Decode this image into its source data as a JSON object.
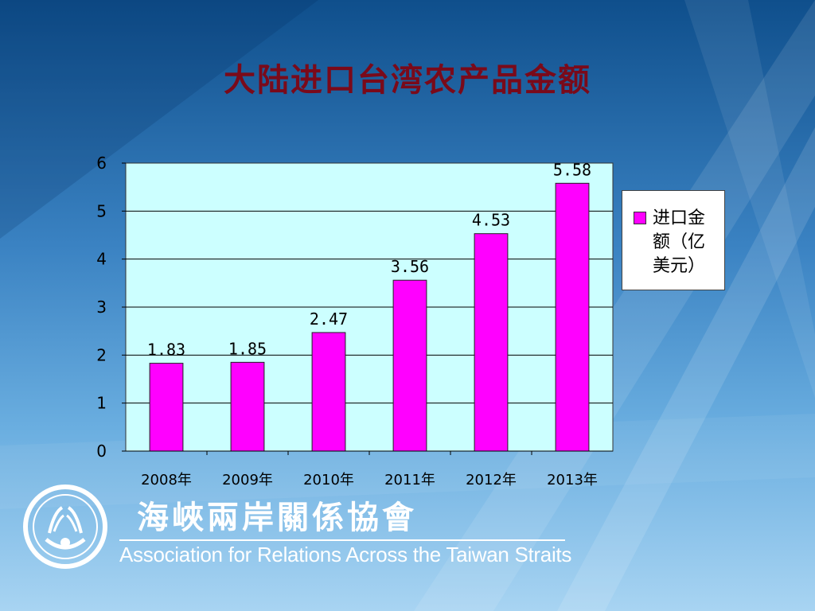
{
  "title": "大陆进口台湾农产品金额",
  "colors": {
    "bar": "#ff00ff",
    "plot_bg": "#ccffff",
    "title": "#7a0a1a"
  },
  "legend": {
    "label": "进口金额（亿美元）"
  },
  "organization": {
    "name_cn": "海峽兩岸關係協會",
    "name_en": "Association for Relations Across the Taiwan Straits",
    "logo_icon": "arats-emblem-icon"
  },
  "chart_data": {
    "type": "bar",
    "categories": [
      "2008年",
      "2009年",
      "2010年",
      "2011年",
      "2012年",
      "2013年"
    ],
    "series": [
      {
        "name": "进口金额（亿美元）",
        "values": [
          1.83,
          1.85,
          2.47,
          3.56,
          4.53,
          5.58
        ]
      }
    ],
    "data_labels": [
      "1.83",
      "1.85",
      "2.47",
      "3.56",
      "4.53",
      "5.58"
    ],
    "y_ticks": [
      "0",
      "1",
      "2",
      "3",
      "4",
      "5",
      "6"
    ],
    "ylim": [
      0,
      6
    ],
    "grid": true,
    "legend_position": "right"
  }
}
